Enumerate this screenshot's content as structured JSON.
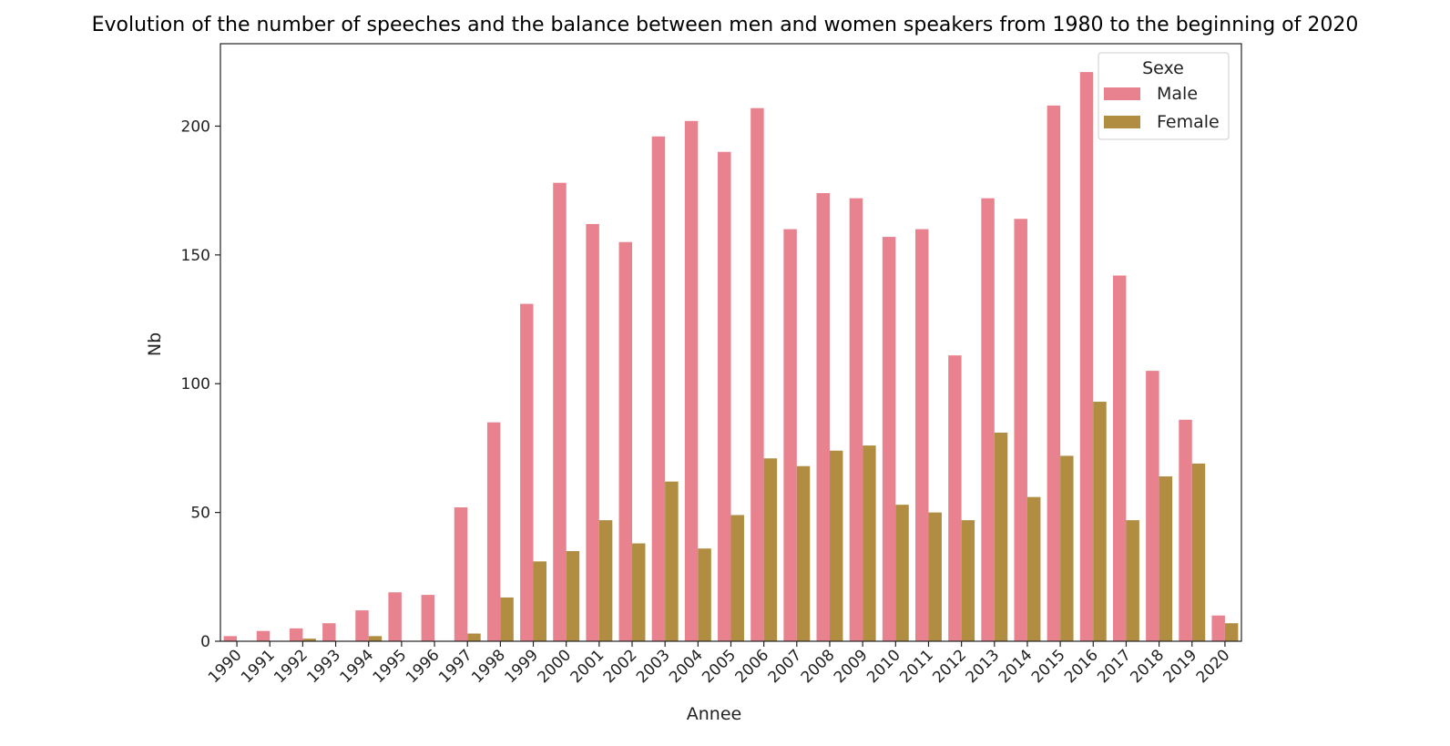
{
  "chart_data": {
    "type": "bar",
    "title": "Evolution of the number of speeches and the balance between men and women speakers from 1980 to the beginning of 2020",
    "xlabel": "Annee",
    "ylabel": "Nb",
    "ylim": [
      0,
      232
    ],
    "yticks": [
      0,
      50,
      100,
      150,
      200
    ],
    "grid": false,
    "legend": {
      "title": "Sexe",
      "placement": "top-right"
    },
    "categories": [
      "1990",
      "1991",
      "1992",
      "1993",
      "1994",
      "1995",
      "1996",
      "1997",
      "1998",
      "1999",
      "2000",
      "2001",
      "2002",
      "2003",
      "2004",
      "2005",
      "2006",
      "2007",
      "2008",
      "2009",
      "2010",
      "2011",
      "2012",
      "2013",
      "2014",
      "2015",
      "2016",
      "2017",
      "2018",
      "2019",
      "2020"
    ],
    "series": [
      {
        "name": "Male",
        "color": "#e8828f",
        "values": [
          2,
          4,
          5,
          7,
          12,
          19,
          18,
          52,
          85,
          131,
          178,
          162,
          155,
          196,
          202,
          190,
          207,
          160,
          174,
          172,
          157,
          160,
          111,
          172,
          164,
          208,
          221,
          142,
          105,
          86,
          10
        ]
      },
      {
        "name": "Female",
        "color": "#b08d41",
        "values": [
          0,
          0,
          1,
          0,
          2,
          0,
          0,
          3,
          17,
          31,
          35,
          47,
          38,
          62,
          36,
          49,
          71,
          68,
          74,
          76,
          53,
          50,
          47,
          81,
          56,
          72,
          93,
          47,
          64,
          69,
          7
        ]
      }
    ]
  }
}
